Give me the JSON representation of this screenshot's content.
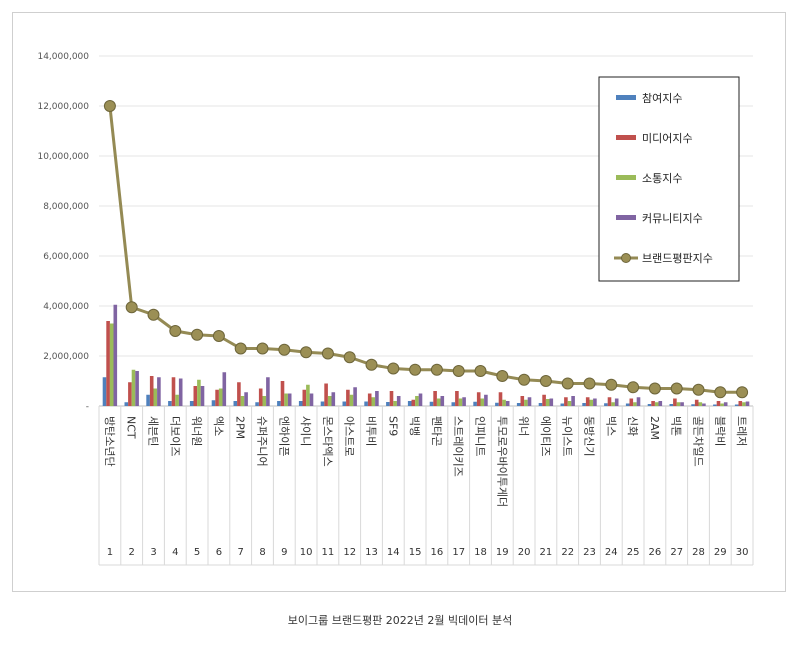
{
  "caption": "보이그룹 브랜드평판  2022년 2월 빅데이터 분석",
  "chart_data": {
    "type": "bar",
    "categories": [
      "방탄소년단",
      "NCT",
      "세븐틴",
      "더보이즈",
      "워너원",
      "엑소",
      "2PM",
      "슈퍼주니어",
      "엔하이픈",
      "샤이니",
      "몬스타엑스",
      "아스트로",
      "비투비",
      "SF9",
      "빅뱅",
      "펜타곤",
      "스트레이키즈",
      "인피니트",
      "투모로우바이투게더",
      "위너",
      "에이티즈",
      "뉴이스트",
      "동방신기",
      "빅스",
      "신화",
      "2AM",
      "빅톤",
      "골든차일드",
      "블락비",
      "트레저"
    ],
    "ranks": [
      "1",
      "2",
      "3",
      "4",
      "5",
      "6",
      "7",
      "8",
      "9",
      "10",
      "11",
      "12",
      "13",
      "14",
      "15",
      "16",
      "17",
      "18",
      "19",
      "20",
      "21",
      "22",
      "23",
      "24",
      "25",
      "26",
      "27",
      "28",
      "29",
      "30"
    ],
    "ylim": [
      0,
      14000000
    ],
    "yticks": [
      "-",
      "2,000,000",
      "4,000,000",
      "6,000,000",
      "8,000,000",
      "10,000,000",
      "12,000,000",
      "14,000,000"
    ],
    "ytick_values": [
      0,
      2000000,
      4000000,
      6000000,
      8000000,
      10000000,
      12000000,
      14000000
    ],
    "grid": true,
    "legend_position": "top-right",
    "series": [
      {
        "name": "참여지수",
        "kind": "bar",
        "color": "#4f81bd",
        "values": [
          1150000,
          150000,
          450000,
          200000,
          200000,
          230000,
          200000,
          150000,
          200000,
          200000,
          180000,
          180000,
          180000,
          160000,
          200000,
          170000,
          150000,
          170000,
          130000,
          120000,
          120000,
          100000,
          120000,
          110000,
          100000,
          80000,
          80000,
          70000,
          60000,
          60000
        ]
      },
      {
        "name": "미디어지수",
        "kind": "bar",
        "color": "#c0504d",
        "values": [
          3400000,
          950000,
          1200000,
          1150000,
          800000,
          650000,
          950000,
          700000,
          1000000,
          650000,
          900000,
          650000,
          500000,
          600000,
          250000,
          600000,
          600000,
          550000,
          550000,
          400000,
          450000,
          350000,
          350000,
          350000,
          300000,
          200000,
          300000,
          250000,
          200000,
          200000
        ]
      },
      {
        "name": "소통지수",
        "kind": "bar",
        "color": "#9bbb59",
        "values": [
          3300000,
          1450000,
          700000,
          450000,
          1050000,
          700000,
          400000,
          400000,
          500000,
          850000,
          400000,
          450000,
          350000,
          200000,
          400000,
          300000,
          300000,
          300000,
          250000,
          250000,
          280000,
          200000,
          250000,
          150000,
          150000,
          150000,
          150000,
          150000,
          100000,
          150000
        ]
      },
      {
        "name": "커뮤니티지수",
        "kind": "bar",
        "color": "#8064a2",
        "values": [
          4050000,
          1400000,
          1150000,
          1100000,
          800000,
          1350000,
          550000,
          1150000,
          500000,
          500000,
          550000,
          750000,
          600000,
          400000,
          500000,
          400000,
          350000,
          450000,
          200000,
          350000,
          300000,
          400000,
          300000,
          300000,
          350000,
          200000,
          150000,
          100000,
          150000,
          180000
        ]
      },
      {
        "name": "브랜드평판지수",
        "kind": "line",
        "color": "#948a54",
        "values": [
          12000000,
          3950000,
          3650000,
          3000000,
          2850000,
          2800000,
          2300000,
          2300000,
          2250000,
          2150000,
          2100000,
          1950000,
          1650000,
          1500000,
          1450000,
          1450000,
          1400000,
          1400000,
          1200000,
          1050000,
          1000000,
          900000,
          900000,
          850000,
          750000,
          700000,
          700000,
          650000,
          550000,
          550000
        ]
      }
    ]
  }
}
